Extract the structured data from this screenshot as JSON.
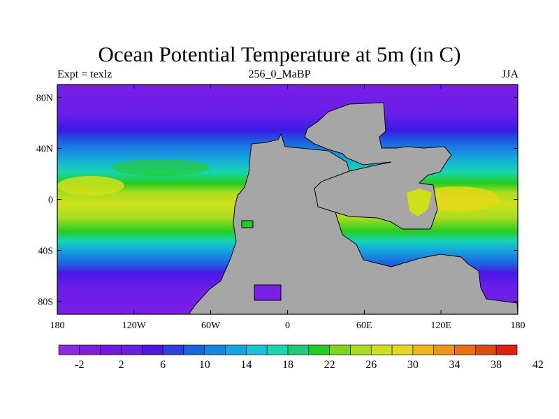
{
  "title": "Ocean Potential Temperature at 5m (in C)",
  "subtitle_left": "Expt = texlz",
  "subtitle_center": "256_0_MaBP",
  "subtitle_right": "JJA",
  "axes": {
    "x_ticks": [
      {
        "value": -180,
        "label": "180"
      },
      {
        "value": -120,
        "label": "120W"
      },
      {
        "value": -60,
        "label": "60W"
      },
      {
        "value": 0,
        "label": "0"
      },
      {
        "value": 60,
        "label": "60E"
      },
      {
        "value": 120,
        "label": "120E"
      },
      {
        "value": 180,
        "label": "180"
      }
    ],
    "y_ticks": [
      {
        "value": 80,
        "label": "80N"
      },
      {
        "value": 40,
        "label": "40N"
      },
      {
        "value": 0,
        "label": "0"
      },
      {
        "value": -40,
        "label": "40S"
      },
      {
        "value": -80,
        "label": "80S"
      }
    ],
    "xlim": [
      -180,
      180
    ],
    "ylim": [
      -90,
      90
    ]
  },
  "land_color": "#a6a6a6",
  "colorbar": {
    "colors": [
      "#8a2be2",
      "#7f1fe6",
      "#7318ea",
      "#6a1ee8",
      "#4a17e8",
      "#2d3fe6",
      "#1b64e0",
      "#1486de",
      "#15a6df",
      "#18c2d7",
      "#16d6b2",
      "#1ccc7c",
      "#26cc21",
      "#7fd41f",
      "#a9dc1f",
      "#cfe01a",
      "#e6d81a",
      "#ecb817",
      "#ea9616",
      "#e46f14",
      "#e04a10",
      "#e0200c"
    ],
    "labels": [
      "-2",
      "2",
      "6",
      "10",
      "14",
      "18",
      "22",
      "26",
      "30",
      "34",
      "38",
      "42"
    ]
  }
}
